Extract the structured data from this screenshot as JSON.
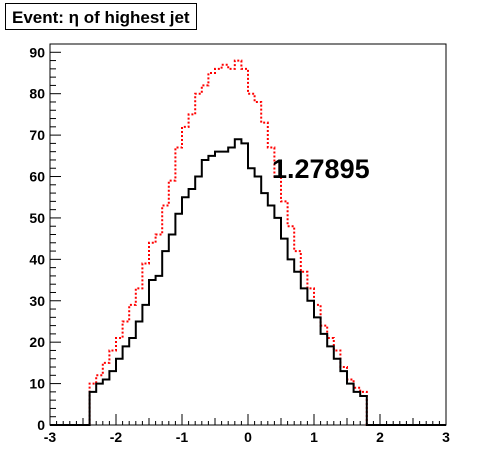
{
  "chart_data": {
    "type": "histogram",
    "title": "Event: η of highest jet",
    "annotation": "1.27895",
    "xlabel": "",
    "ylabel": "",
    "xlim": [
      -3,
      3
    ],
    "ylim": [
      0,
      92
    ],
    "x_ticks": [
      -3,
      -2,
      -1,
      0,
      1,
      2,
      3
    ],
    "y_ticks": [
      0,
      10,
      20,
      30,
      40,
      50,
      60,
      70,
      80,
      90
    ],
    "bin_edges_range": [
      -3,
      3
    ],
    "bin_count": 60,
    "grid": false,
    "series": [
      {
        "style": "solid",
        "color": "#000000",
        "values": [
          0,
          0,
          0,
          0,
          0,
          0,
          8,
          10,
          11,
          13,
          16,
          19,
          21,
          25,
          29,
          35,
          36,
          42,
          46,
          51,
          55,
          57,
          60,
          64,
          65,
          66,
          66,
          67,
          69,
          68,
          62,
          60,
          56,
          53,
          50,
          45,
          40,
          37,
          33,
          30,
          26,
          22,
          19,
          16,
          13,
          10,
          8,
          7,
          0,
          0,
          0,
          0,
          0,
          0,
          0,
          0,
          0,
          0,
          0,
          0
        ]
      },
      {
        "style": "dotted",
        "color": "#ff0000",
        "values": [
          0,
          0,
          0,
          0,
          0,
          0,
          10,
          12,
          15,
          18,
          21,
          25,
          29,
          33,
          39,
          44,
          46,
          53,
          59,
          67,
          72,
          75,
          80,
          82,
          85,
          86,
          87,
          86,
          88,
          86,
          80,
          78,
          73,
          67,
          60,
          54,
          48,
          42,
          37,
          33,
          29,
          24,
          21,
          18,
          14,
          11,
          9,
          8,
          0,
          0,
          0,
          0,
          0,
          0,
          0,
          0,
          0,
          0,
          0,
          0
        ]
      }
    ]
  }
}
